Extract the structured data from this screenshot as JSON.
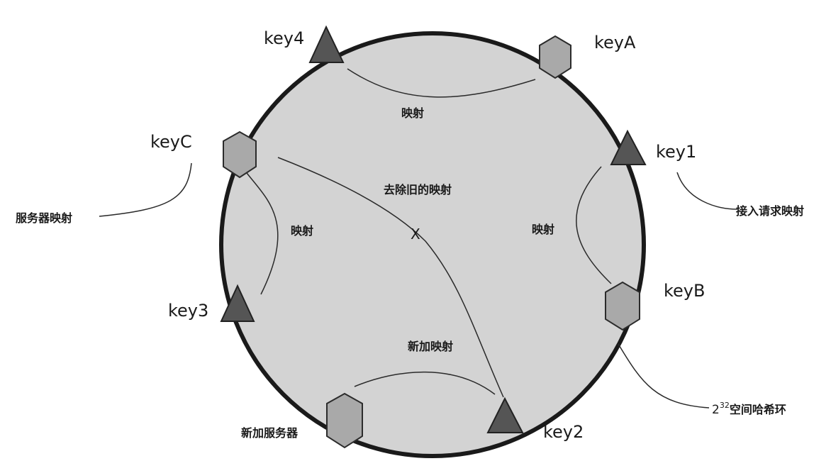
{
  "ring": {
    "fill": "#d3d3d3",
    "stroke": "#1a1a1a"
  },
  "servers": {
    "keyA": "keyA",
    "keyB": "keyB",
    "keyC": "keyC",
    "new_server_label": "新加服务器"
  },
  "requests": {
    "key1": "key1",
    "key2": "key2",
    "key3": "key3",
    "key4": "key4"
  },
  "mappings": {
    "top": "映射",
    "left": "映射",
    "right": "映射",
    "remove_old": "去除旧的映射",
    "removed_mark": "X",
    "new_mapping": "新加映射"
  },
  "callouts": {
    "server_mapping": "服务器映射",
    "request_mapping": "接入请求映射",
    "hash_ring_base": "2",
    "hash_ring_exp": "32",
    "hash_ring_text": "空间哈希环"
  },
  "icons": {
    "server": "hexagon-icon",
    "request": "triangle-icon"
  }
}
